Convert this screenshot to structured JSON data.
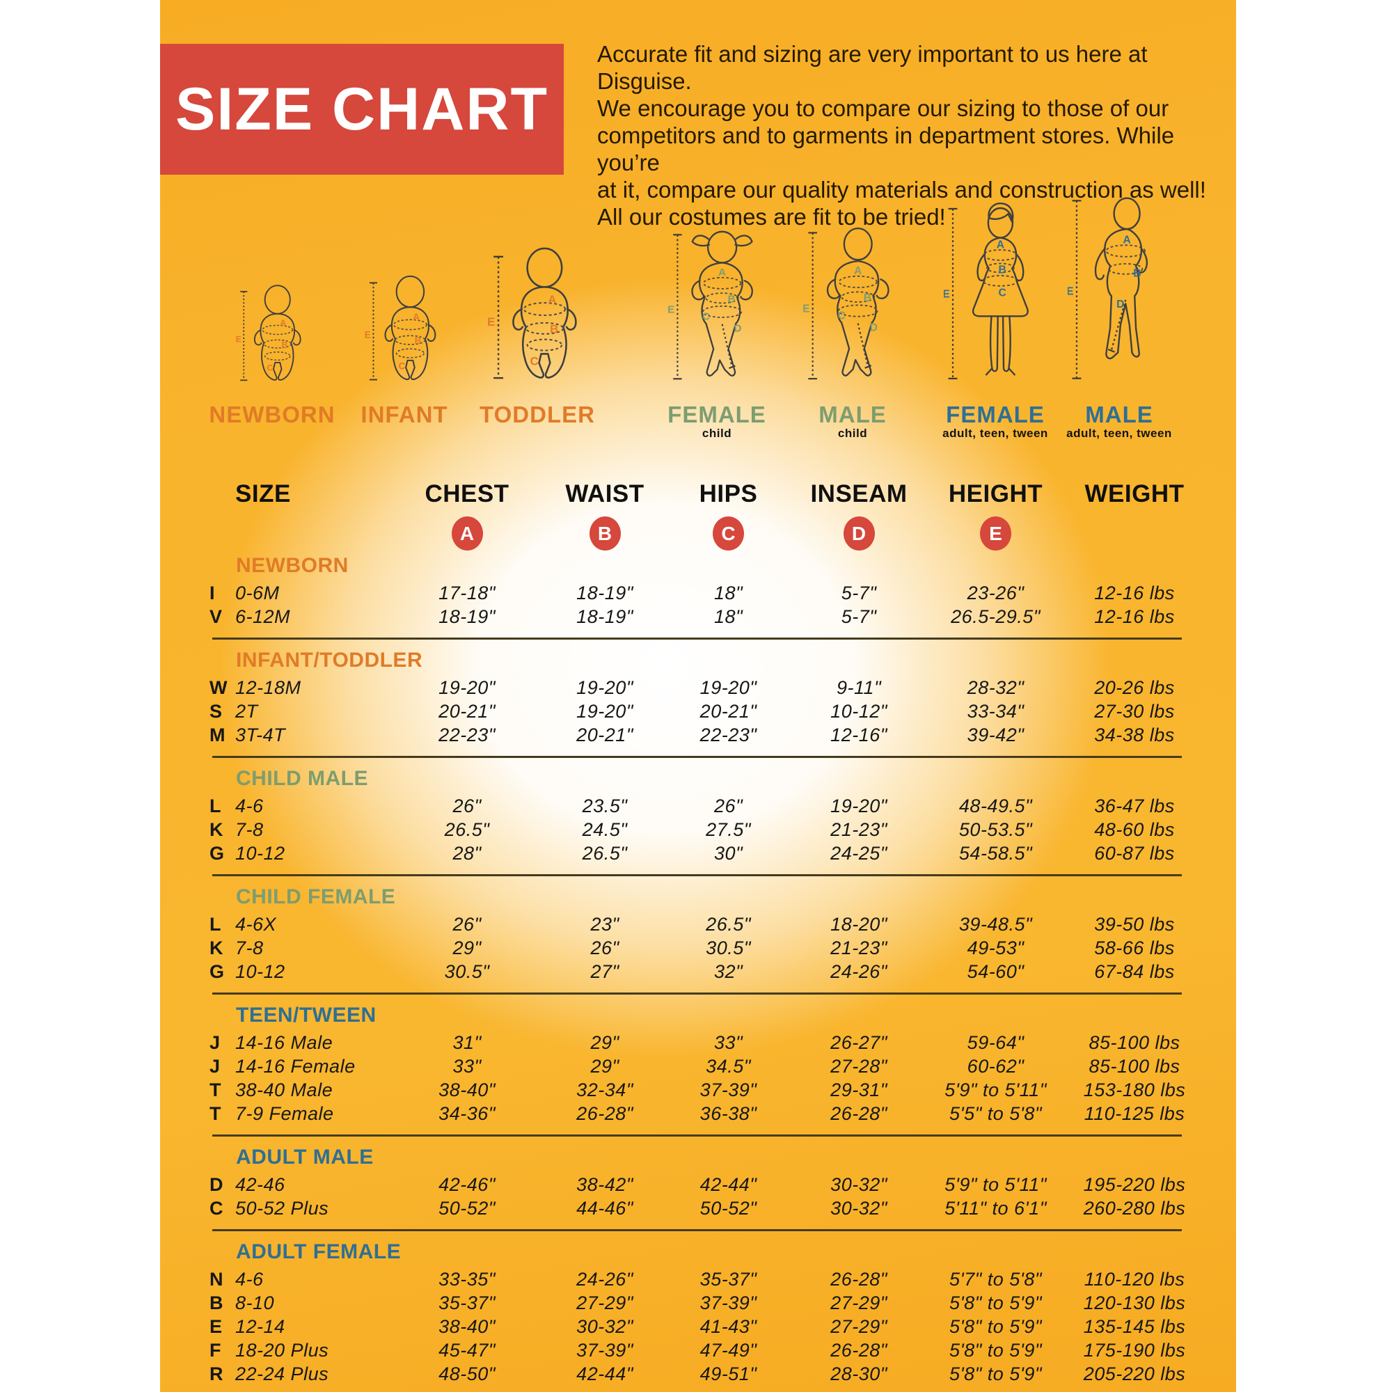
{
  "banner": {
    "title": "SIZE CHART",
    "bg_color": "#d6473c"
  },
  "intro": {
    "lines": [
      "Accurate fit and sizing are very important to us here at Disguise.",
      "We encourage you to compare our sizing to those of our",
      "competitors and to garments in department stores. While you’re",
      "at it, compare our quality materials and construction as well!",
      "All our costumes are fit to be tried!"
    ]
  },
  "colors": {
    "orange_group": "#e07b28",
    "green_group": "#7d9d70",
    "blue_group": "#2f6f94",
    "circle_red": "#d6473c",
    "background_orange": "#f9b42e"
  },
  "figures": [
    {
      "id": "newborn",
      "label": "NEWBORN",
      "sublabel": "",
      "color": "#e07b28",
      "letters": [
        "A",
        "B",
        "C",
        "E"
      ]
    },
    {
      "id": "infant",
      "label": "INFANT",
      "sublabel": "",
      "color": "#e07b28",
      "letters": [
        "A",
        "B",
        "C",
        "E"
      ]
    },
    {
      "id": "toddler",
      "label": "TODDLER",
      "sublabel": "",
      "color": "#e07b28",
      "letters": [
        "A",
        "B",
        "C",
        "E"
      ]
    },
    {
      "id": "female-child",
      "label": "FEMALE",
      "sublabel": "child",
      "color": "#7d9d70",
      "letters": [
        "A",
        "B",
        "C",
        "D",
        "E"
      ]
    },
    {
      "id": "male-child",
      "label": "MALE",
      "sublabel": "child",
      "color": "#7d9d70",
      "letters": [
        "A",
        "B",
        "C",
        "D",
        "E"
      ]
    },
    {
      "id": "female-adult",
      "label": "FEMALE",
      "sublabel": "adult, teen, tween",
      "color": "#2f6f94",
      "letters": [
        "A",
        "B",
        "C",
        "E"
      ]
    },
    {
      "id": "male-adult",
      "label": "MALE",
      "sublabel": "adult, teen, tween",
      "color": "#2f6f94",
      "letters": [
        "A",
        "B",
        "D",
        "E"
      ]
    }
  ],
  "table": {
    "columns": [
      "SIZE",
      "CHEST",
      "WAIST",
      "HIPS",
      "INSEAM",
      "HEIGHT",
      "WEIGHT"
    ],
    "measure_letters": [
      "A",
      "B",
      "C",
      "D",
      "E"
    ],
    "sections": [
      {
        "name": "NEWBORN",
        "color": "#e07b28",
        "rows": [
          {
            "code": "I",
            "size": "0-6M",
            "chest": "17-18\"",
            "waist": "18-19\"",
            "hips": "18\"",
            "inseam": "5-7\"",
            "height": "23-26\"",
            "weight": "12-16 lbs"
          },
          {
            "code": "V",
            "size": "6-12M",
            "chest": "18-19\"",
            "waist": "18-19\"",
            "hips": "18\"",
            "inseam": "5-7\"",
            "height": "26.5-29.5\"",
            "weight": "12-16 lbs"
          }
        ]
      },
      {
        "name": "INFANT/TODDLER",
        "color": "#e07b28",
        "rows": [
          {
            "code": "W",
            "size": "12-18M",
            "chest": "19-20\"",
            "waist": "19-20\"",
            "hips": "19-20\"",
            "inseam": "9-11\"",
            "height": "28-32\"",
            "weight": "20-26 lbs"
          },
          {
            "code": "S",
            "size": "2T",
            "chest": "20-21\"",
            "waist": "19-20\"",
            "hips": "20-21\"",
            "inseam": "10-12\"",
            "height": "33-34\"",
            "weight": "27-30 lbs"
          },
          {
            "code": "M",
            "size": "3T-4T",
            "chest": "22-23\"",
            "waist": "20-21\"",
            "hips": "22-23\"",
            "inseam": "12-16\"",
            "height": "39-42\"",
            "weight": "34-38 lbs"
          }
        ]
      },
      {
        "name": "CHILD MALE",
        "color": "#7d9d70",
        "rows": [
          {
            "code": "L",
            "size": "4-6",
            "chest": "26\"",
            "waist": "23.5\"",
            "hips": "26\"",
            "inseam": "19-20\"",
            "height": "48-49.5\"",
            "weight": "36-47 lbs"
          },
          {
            "code": "K",
            "size": "7-8",
            "chest": "26.5\"",
            "waist": "24.5\"",
            "hips": "27.5\"",
            "inseam": "21-23\"",
            "height": "50-53.5\"",
            "weight": "48-60 lbs"
          },
          {
            "code": "G",
            "size": "10-12",
            "chest": "28\"",
            "waist": "26.5\"",
            "hips": "30\"",
            "inseam": "24-25\"",
            "height": "54-58.5\"",
            "weight": "60-87 lbs"
          }
        ]
      },
      {
        "name": "CHILD FEMALE",
        "color": "#7d9d70",
        "rows": [
          {
            "code": "L",
            "size": "4-6X",
            "chest": "26\"",
            "waist": "23\"",
            "hips": "26.5\"",
            "inseam": "18-20\"",
            "height": "39-48.5\"",
            "weight": "39-50 lbs"
          },
          {
            "code": "K",
            "size": "7-8",
            "chest": "29\"",
            "waist": "26\"",
            "hips": "30.5\"",
            "inseam": "21-23\"",
            "height": "49-53\"",
            "weight": "58-66 lbs"
          },
          {
            "code": "G",
            "size": "10-12",
            "chest": "30.5\"",
            "waist": "27\"",
            "hips": "32\"",
            "inseam": "24-26\"",
            "height": "54-60\"",
            "weight": "67-84 lbs"
          }
        ]
      },
      {
        "name": "TEEN/TWEEN",
        "color": "#2f6f94",
        "rows": [
          {
            "code": "J",
            "size": "14-16 Male",
            "chest": "31\"",
            "waist": "29\"",
            "hips": "33\"",
            "inseam": "26-27\"",
            "height": "59-64\"",
            "weight": "85-100 lbs"
          },
          {
            "code": "J",
            "size": "14-16 Female",
            "chest": "33\"",
            "waist": "29\"",
            "hips": "34.5\"",
            "inseam": "27-28\"",
            "height": "60-62\"",
            "weight": "85-100 lbs"
          },
          {
            "code": "T",
            "size": "38-40 Male",
            "chest": "38-40\"",
            "waist": "32-34\"",
            "hips": "37-39\"",
            "inseam": "29-31\"",
            "height": "5'9\" to 5'11\"",
            "weight": "153-180 lbs"
          },
          {
            "code": "T",
            "size": "7-9 Female",
            "chest": "34-36\"",
            "waist": "26-28\"",
            "hips": "36-38\"",
            "inseam": "26-28\"",
            "height": "5'5\" to 5'8\"",
            "weight": "110-125 lbs"
          }
        ]
      },
      {
        "name": "ADULT MALE",
        "color": "#2f6f94",
        "rows": [
          {
            "code": "D",
            "size": "42-46",
            "chest": "42-46\"",
            "waist": "38-42\"",
            "hips": "42-44\"",
            "inseam": "30-32\"",
            "height": "5'9\" to 5'11\"",
            "weight": "195-220 lbs"
          },
          {
            "code": "C",
            "size": "50-52 Plus",
            "chest": "50-52\"",
            "waist": "44-46\"",
            "hips": "50-52\"",
            "inseam": "30-32\"",
            "height": "5'11\" to 6'1\"",
            "weight": "260-280 lbs"
          }
        ]
      },
      {
        "name": "ADULT FEMALE",
        "color": "#2f6f94",
        "rows": [
          {
            "code": "N",
            "size": "4-6",
            "chest": "33-35\"",
            "waist": "24-26\"",
            "hips": "35-37\"",
            "inseam": "26-28\"",
            "height": "5'7\" to 5'8\"",
            "weight": "110-120 lbs"
          },
          {
            "code": "B",
            "size": "8-10",
            "chest": "35-37\"",
            "waist": "27-29\"",
            "hips": "37-39\"",
            "inseam": "27-29\"",
            "height": "5'8\" to 5'9\"",
            "weight": "120-130 lbs"
          },
          {
            "code": "E",
            "size": "12-14",
            "chest": "38-40\"",
            "waist": "30-32\"",
            "hips": "41-43\"",
            "inseam": "27-29\"",
            "height": "5'8\" to 5'9\"",
            "weight": "135-145 lbs"
          },
          {
            "code": "F",
            "size": "18-20 Plus",
            "chest": "45-47\"",
            "waist": "37-39\"",
            "hips": "47-49\"",
            "inseam": "26-28\"",
            "height": "5'8\" to 5'9\"",
            "weight": "175-190 lbs"
          },
          {
            "code": "R",
            "size": "22-24 Plus",
            "chest": "48-50\"",
            "waist": "42-44\"",
            "hips": "49-51\"",
            "inseam": "28-30\"",
            "height": "5'8\" to 5'9\"",
            "weight": "205-220 lbs"
          }
        ]
      }
    ]
  }
}
